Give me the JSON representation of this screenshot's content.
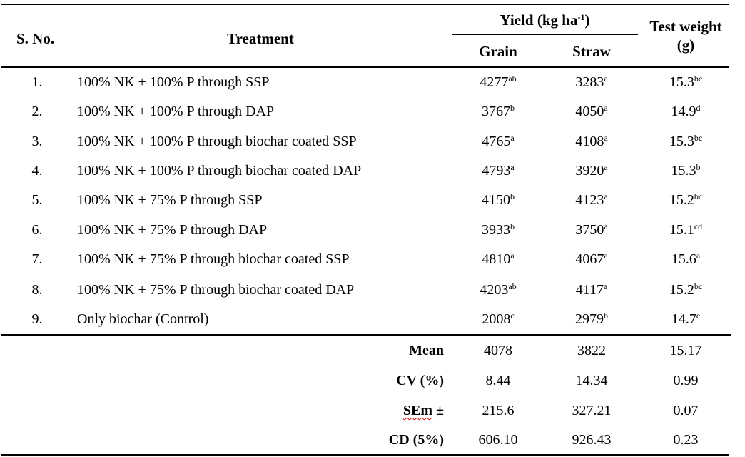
{
  "header": {
    "sno": "S. No.",
    "treatment": "Treatment",
    "yield_label": "Yield (kg ha",
    "yield_exp": "-1",
    "yield_close": ")",
    "grain": "Grain",
    "straw": "Straw",
    "test_weight_line1": "Test weight",
    "test_weight_line2": "(g)"
  },
  "rows": [
    {
      "no": "1.",
      "treatment": "100% NK + 100% P through SSP",
      "grain": "4277",
      "grain_sup": "ab",
      "straw": "3283",
      "straw_sup": "a",
      "tw": "15.3",
      "tw_sup": "bc"
    },
    {
      "no": "2.",
      "treatment": "100% NK + 100% P through DAP",
      "grain": "3767",
      "grain_sup": "b",
      "straw": "4050",
      "straw_sup": "a",
      "tw": "14.9",
      "tw_sup": "d"
    },
    {
      "no": "3.",
      "treatment": "100% NK + 100% P through biochar coated SSP",
      "grain": "4765",
      "grain_sup": "a",
      "straw": "4108",
      "straw_sup": "a",
      "tw": "15.3",
      "tw_sup": "bc"
    },
    {
      "no": "4.",
      "treatment": "100% NK + 100% P through biochar coated DAP",
      "grain": "4793",
      "grain_sup": "a",
      "straw": "3920",
      "straw_sup": "a",
      "tw": "15.3",
      "tw_sup": "b"
    },
    {
      "no": "5.",
      "treatment": "100% NK + 75% P through SSP",
      "grain": "4150",
      "grain_sup": "b",
      "straw": "4123",
      "straw_sup": "a",
      "tw": "15.2",
      "tw_sup": "bc"
    },
    {
      "no": "6.",
      "treatment": "100% NK + 75% P through DAP",
      "grain": "3933",
      "grain_sup": "b",
      "straw": "3750",
      "straw_sup": "a",
      "tw": "15.1",
      "tw_sup": "cd"
    },
    {
      "no": "7.",
      "treatment": "100% NK + 75% P through biochar coated SSP",
      "grain": "4810",
      "grain_sup": "a",
      "straw": "4067",
      "straw_sup": "a",
      "tw": "15.6",
      "tw_sup": "a"
    },
    {
      "no": "8.",
      "treatment": "100% NK + 75% P through biochar coated DAP",
      "grain": "4203",
      "grain_sup": "ab",
      "straw": "4117",
      "straw_sup": "a",
      "tw": "15.2",
      "tw_sup": "bc"
    },
    {
      "no": "9.",
      "treatment": "Only biochar (Control)",
      "grain": "2008",
      "grain_sup": "c",
      "straw": "2979",
      "straw_sup": "b",
      "tw": "14.7",
      "tw_sup": "e"
    }
  ],
  "stats": [
    {
      "label": "Mean",
      "grain": "4078",
      "straw": "3822",
      "tw": "15.17"
    },
    {
      "label": "CV (%)",
      "grain": "8.44",
      "straw": "14.34",
      "tw": "0.99"
    },
    {
      "label": "SEm ±",
      "grain": "215.6",
      "straw": "327.21",
      "tw": "0.07"
    },
    {
      "label": "CD (5%)",
      "grain": "606.10",
      "straw": "926.43",
      "tw": "0.23"
    }
  ]
}
